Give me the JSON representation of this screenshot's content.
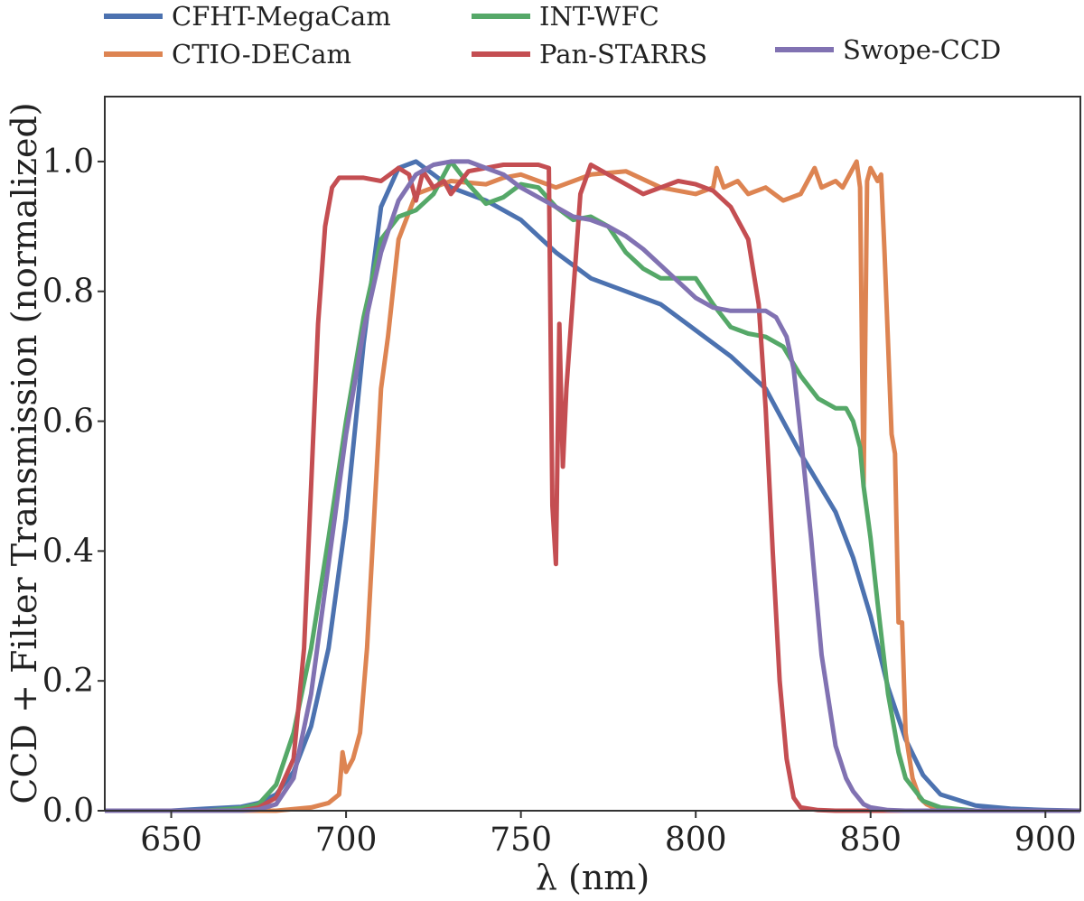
{
  "chart_data": {
    "type": "line",
    "title": "",
    "xlabel": "λ (nm)",
    "ylabel": "CCD + Filter Transmission (normalized)",
    "xlim": [
      631,
      910
    ],
    "ylim": [
      0.0,
      1.1
    ],
    "xticks": [
      650,
      700,
      750,
      800,
      850,
      900
    ],
    "xtick_labels": [
      "650",
      "700",
      "750",
      "800",
      "850",
      "900"
    ],
    "yticks": [
      0.0,
      0.2,
      0.4,
      0.6,
      0.8,
      1.0
    ],
    "ytick_labels": [
      "0.0",
      "0.2",
      "0.4",
      "0.6",
      "0.8",
      "1.0"
    ],
    "grid": false,
    "legend_position": "top",
    "series": [
      {
        "name": "CFHT-MegaCam",
        "color": "#4c72b0",
        "x": [
          631,
          650,
          660,
          670,
          675,
          680,
          685,
          690,
          695,
          700,
          705,
          710,
          715,
          720,
          725,
          730,
          740,
          750,
          760,
          770,
          780,
          790,
          800,
          810,
          820,
          830,
          840,
          845,
          850,
          855,
          860,
          865,
          870,
          880,
          890,
          900,
          910
        ],
        "values": [
          0.0,
          0.0,
          0.003,
          0.006,
          0.012,
          0.025,
          0.06,
          0.13,
          0.25,
          0.45,
          0.72,
          0.93,
          0.99,
          1.0,
          0.98,
          0.96,
          0.94,
          0.91,
          0.86,
          0.82,
          0.8,
          0.78,
          0.74,
          0.7,
          0.65,
          0.55,
          0.46,
          0.39,
          0.3,
          0.19,
          0.11,
          0.055,
          0.025,
          0.008,
          0.003,
          0.001,
          0.0
        ]
      },
      {
        "name": "CTIO-DECam",
        "color": "#dd8452",
        "x": [
          631,
          680,
          690,
          695,
          698,
          699,
          700,
          702,
          704,
          706,
          708,
          710,
          712,
          715,
          720,
          725,
          730,
          740,
          745,
          750,
          755,
          760,
          770,
          780,
          790,
          800,
          805,
          806,
          808,
          812,
          815,
          820,
          825,
          830,
          832,
          834,
          836,
          840,
          842,
          844,
          846,
          847,
          848,
          849,
          850,
          852,
          853,
          854,
          856,
          857,
          858,
          859,
          860,
          862,
          864,
          866,
          868,
          872,
          880,
          910
        ],
        "values": [
          0.0,
          0.0,
          0.005,
          0.012,
          0.025,
          0.09,
          0.06,
          0.08,
          0.12,
          0.25,
          0.45,
          0.65,
          0.73,
          0.88,
          0.95,
          0.96,
          0.97,
          0.965,
          0.975,
          0.98,
          0.97,
          0.96,
          0.98,
          0.985,
          0.96,
          0.95,
          0.96,
          0.99,
          0.96,
          0.97,
          0.95,
          0.96,
          0.94,
          0.95,
          0.97,
          0.99,
          0.96,
          0.97,
          0.96,
          0.98,
          1.0,
          0.96,
          0.5,
          0.97,
          0.99,
          0.97,
          0.98,
          0.86,
          0.58,
          0.55,
          0.29,
          0.29,
          0.12,
          0.05,
          0.02,
          0.01,
          0.005,
          0.002,
          0.0,
          0.0
        ]
      },
      {
        "name": "INT-WFC",
        "color": "#55a868",
        "x": [
          631,
          660,
          670,
          675,
          680,
          685,
          690,
          695,
          700,
          705,
          710,
          715,
          720,
          725,
          730,
          735,
          740,
          745,
          750,
          755,
          760,
          765,
          770,
          775,
          780,
          785,
          790,
          795,
          800,
          805,
          810,
          815,
          820,
          825,
          830,
          835,
          840,
          843,
          845,
          846,
          847,
          848,
          850,
          852,
          855,
          858,
          860,
          865,
          870,
          880,
          910
        ],
        "values": [
          0.0,
          0.0,
          0.004,
          0.01,
          0.04,
          0.12,
          0.25,
          0.42,
          0.6,
          0.76,
          0.88,
          0.915,
          0.925,
          0.95,
          1.0,
          0.965,
          0.935,
          0.945,
          0.965,
          0.96,
          0.93,
          0.91,
          0.915,
          0.9,
          0.86,
          0.835,
          0.82,
          0.82,
          0.82,
          0.78,
          0.745,
          0.735,
          0.73,
          0.715,
          0.67,
          0.635,
          0.62,
          0.62,
          0.6,
          0.58,
          0.56,
          0.5,
          0.42,
          0.32,
          0.18,
          0.09,
          0.05,
          0.015,
          0.005,
          0.0,
          0.0
        ]
      },
      {
        "name": "Pan-STARRS",
        "color": "#c44e52",
        "x": [
          631,
          670,
          675,
          680,
          685,
          688,
          690,
          692,
          694,
          696,
          698,
          700,
          705,
          710,
          715,
          718,
          720,
          722,
          725,
          728,
          730,
          735,
          740,
          745,
          750,
          755,
          758,
          759,
          760,
          761,
          762,
          763,
          765,
          767,
          770,
          775,
          780,
          785,
          790,
          795,
          800,
          805,
          810,
          815,
          818,
          820,
          822,
          824,
          826,
          828,
          830,
          835,
          840,
          845,
          850,
          910
        ],
        "values": [
          0.0,
          0.0,
          0.005,
          0.02,
          0.08,
          0.25,
          0.5,
          0.75,
          0.9,
          0.96,
          0.975,
          0.975,
          0.975,
          0.97,
          0.99,
          0.98,
          0.94,
          0.985,
          0.96,
          0.97,
          0.95,
          0.985,
          0.99,
          0.995,
          0.995,
          0.995,
          0.99,
          0.47,
          0.38,
          0.75,
          0.53,
          0.65,
          0.8,
          0.95,
          0.995,
          0.98,
          0.965,
          0.95,
          0.96,
          0.97,
          0.965,
          0.955,
          0.93,
          0.88,
          0.78,
          0.62,
          0.4,
          0.2,
          0.08,
          0.02,
          0.005,
          0.001,
          0.0,
          0.0,
          0.0,
          0.0
        ]
      },
      {
        "name": "Swope-CCD",
        "color": "#8172b2",
        "x": [
          631,
          670,
          675,
          680,
          685,
          690,
          695,
          700,
          705,
          710,
          715,
          720,
          725,
          730,
          735,
          740,
          745,
          750,
          755,
          760,
          765,
          770,
          775,
          780,
          785,
          790,
          795,
          800,
          805,
          810,
          815,
          820,
          823,
          826,
          828,
          830,
          833,
          836,
          840,
          843,
          845,
          848,
          850,
          855,
          860,
          865,
          910
        ],
        "values": [
          0.0,
          0.0,
          0.002,
          0.01,
          0.05,
          0.18,
          0.38,
          0.58,
          0.74,
          0.86,
          0.94,
          0.98,
          0.995,
          1.0,
          1.0,
          0.99,
          0.98,
          0.96,
          0.945,
          0.93,
          0.915,
          0.91,
          0.9,
          0.885,
          0.865,
          0.84,
          0.815,
          0.79,
          0.775,
          0.77,
          0.77,
          0.77,
          0.76,
          0.73,
          0.68,
          0.58,
          0.42,
          0.24,
          0.1,
          0.05,
          0.03,
          0.01,
          0.005,
          0.001,
          0.0,
          0.0,
          0.0
        ]
      }
    ]
  }
}
